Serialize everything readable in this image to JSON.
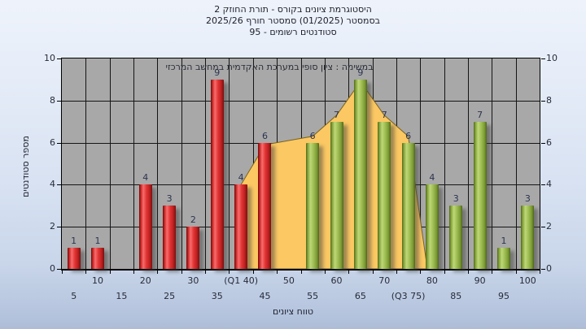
{
  "title": {
    "line1": "היסטוגרמת ציונים בקורס - תורת החוזק 2",
    "line2": "בסמסטר  (01/2025)  סמסטר חורף 2025/26",
    "line3": "סטודנטים רשומים - 95"
  },
  "legend_note": "במשימה : ציון סופי במערכת האקדמית במחשב המרכזי",
  "chart_data": {
    "type": "bar",
    "title": "היסטוגרמת ציונים בקורס - תורת החוזק 2, בסמסטר (01/2025) סמסטר חורף 2025/26",
    "students_registered": 95,
    "xlabel": "טווח ציונים",
    "ylabel": "מספר סטודנטים",
    "ylim": [
      0,
      10
    ],
    "y_ticks": [
      0,
      2,
      4,
      6,
      8,
      10
    ],
    "grid": true,
    "categories": [
      5,
      10,
      15,
      20,
      25,
      30,
      35,
      40,
      45,
      50,
      55,
      60,
      65,
      70,
      75,
      80,
      85,
      90,
      95,
      100
    ],
    "values": [
      1,
      1,
      0,
      4,
      3,
      2,
      9,
      4,
      6,
      0,
      6,
      7,
      9,
      7,
      6,
      4,
      3,
      7,
      1,
      3
    ],
    "bar_colors": [
      "red",
      "red",
      "red",
      "red",
      "red",
      "red",
      "red",
      "red",
      "red",
      "red",
      "green",
      "green",
      "green",
      "green",
      "green",
      "green",
      "green",
      "green",
      "green",
      "green"
    ],
    "x_tick_labels": {
      "40": "(Q1 40)",
      "75": "(Q3 75)"
    },
    "overlay_area": {
      "name": "distribution-curve",
      "fill": "#fbc863",
      "outline": "#7a641e",
      "points": [
        [
          40,
          0
        ],
        [
          40,
          4
        ],
        [
          45,
          5.9
        ],
        [
          50,
          6.1
        ],
        [
          55,
          6.3
        ],
        [
          60,
          7.3
        ],
        [
          65,
          8.9
        ],
        [
          70,
          7.3
        ],
        [
          75,
          6.3
        ],
        [
          79,
          0
        ]
      ]
    },
    "colors": {
      "fail_bar": "#e23434",
      "pass_bar": "#9cbb50",
      "area": "#fbc863",
      "plot_background": "#a8a8a8",
      "gridline": "#151515"
    }
  }
}
